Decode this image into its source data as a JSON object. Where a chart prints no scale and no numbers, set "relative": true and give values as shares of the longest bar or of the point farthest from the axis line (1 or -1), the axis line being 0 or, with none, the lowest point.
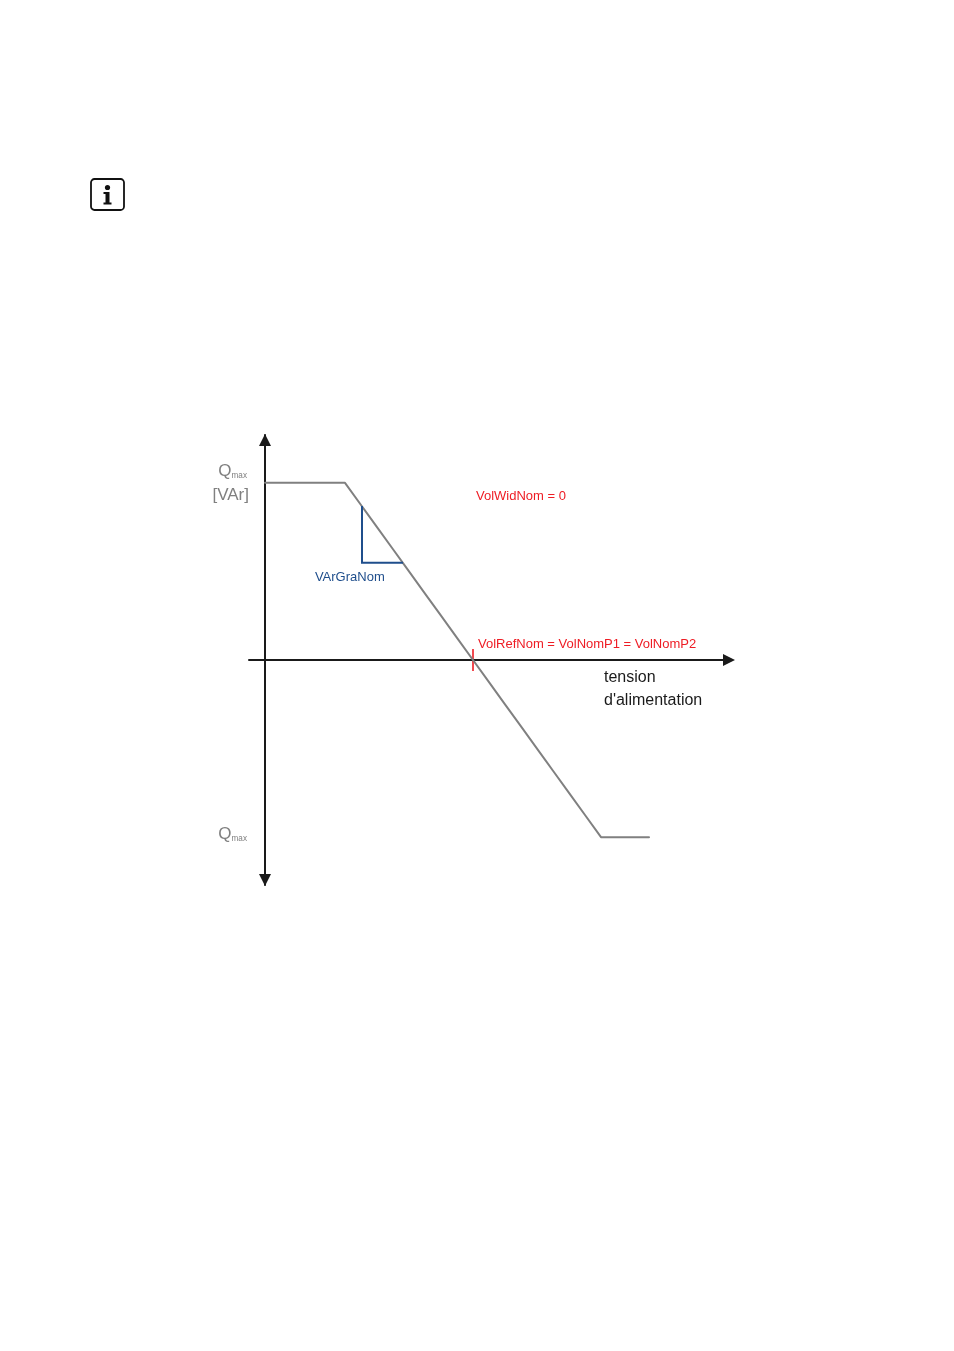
{
  "chart_data": {
    "type": "line",
    "relative": true,
    "xlabel": "tension d'alimentation",
    "ylabel": "[VAr]",
    "annotations": [
      "Q$_{max}$",
      "Q$_{max}$",
      "VolWidNom = 0",
      "VArGraNom",
      "VolRefNom = VolNomP1 = VolNomP2"
    ],
    "categories": [
      null,
      null,
      null,
      null,
      null,
      null,
      null,
      null,
      null,
      null,
      null,
      null,
      null,
      null,
      null,
      null,
      null,
      null,
      null,
      null,
      null,
      null,
      null,
      null,
      null,
      null,
      null,
      null,
      null,
      null,
      null
    ],
    "series": [
      {
        "color": "#808080",
        "values": [
          null,
          1,
          1,
          1,
          1,
          1,
          1,
          0.875,
          0.75,
          0.625,
          0.5,
          0.375,
          0.25,
          0.125,
          0,
          -0.125,
          -0.25,
          -0.375,
          -0.5,
          -0.625,
          -0.75,
          -0.875,
          -1,
          -1,
          -1,
          -1,
          null,
          null,
          null,
          null,
          null
        ]
      }
    ],
    "marker": "none"
  }
}
